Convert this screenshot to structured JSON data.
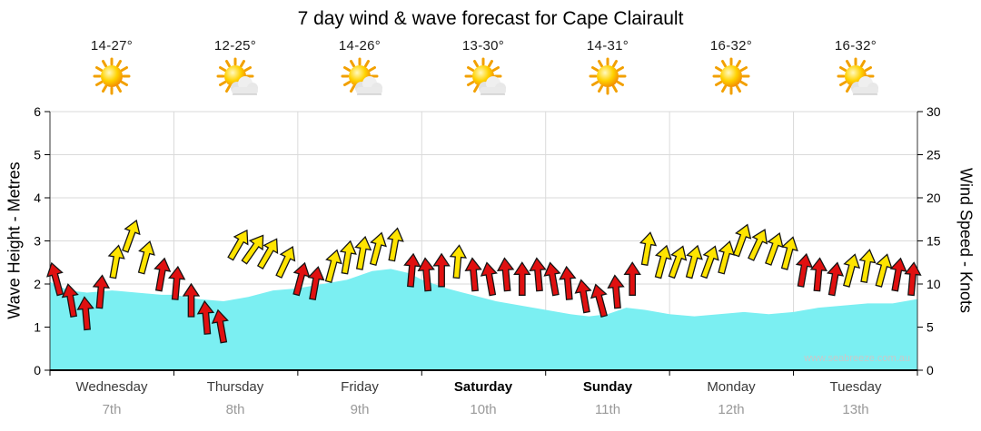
{
  "title": "7 day wind & wave forecast for Cape Clairault",
  "watermark": "www.seabreeze.com.au",
  "left_axis": {
    "label": "Wave Height - Metres",
    "ticks": [
      0,
      1,
      2,
      3,
      4,
      5,
      6
    ]
  },
  "right_axis": {
    "label": "Wind Speed - Knots",
    "ticks": [
      0,
      5,
      10,
      15,
      20,
      25,
      30
    ]
  },
  "days": [
    {
      "name": "Wednesday",
      "date": "7th",
      "temp": "14-27°",
      "icon": "sun",
      "highlight": false
    },
    {
      "name": "Thursday",
      "date": "8th",
      "temp": "12-25°",
      "icon": "sun-cloud",
      "highlight": false
    },
    {
      "name": "Friday",
      "date": "9th",
      "temp": "14-26°",
      "icon": "sun-cloud",
      "highlight": false
    },
    {
      "name": "Saturday",
      "date": "10th",
      "temp": "13-30°",
      "icon": "sun-cloud",
      "highlight": true
    },
    {
      "name": "Sunday",
      "date": "11th",
      "temp": "14-31°",
      "icon": "sun",
      "highlight": true
    },
    {
      "name": "Monday",
      "date": "12th",
      "temp": "16-32°",
      "icon": "sun",
      "highlight": false
    },
    {
      "name": "Tuesday",
      "date": "13th",
      "temp": "16-32°",
      "icon": "sun-cloud",
      "highlight": false
    }
  ],
  "chart_data": {
    "type": "area",
    "title": "7 day wind & wave forecast for Cape Clairault",
    "x_axis": {
      "unit": "days",
      "range": [
        0,
        7
      ],
      "day_labels": [
        "Wednesday 7th",
        "Thursday 8th",
        "Friday 9th",
        "Saturday 10th",
        "Sunday 11th",
        "Monday 12th",
        "Tuesday 13th"
      ]
    },
    "grid": true,
    "wave_height_m": {
      "axis": "left",
      "ylabel": "Wave Height - Metres",
      "ylim": [
        0,
        6
      ],
      "color": "#7BEFF2",
      "t_days": [
        0,
        0.15,
        0.3,
        0.5,
        0.7,
        0.9,
        1.0,
        1.2,
        1.4,
        1.6,
        1.8,
        2.0,
        2.2,
        2.4,
        2.6,
        2.75,
        2.9,
        3.0,
        3.2,
        3.4,
        3.6,
        3.8,
        4.0,
        4.2,
        4.35,
        4.5,
        4.65,
        4.8,
        5.0,
        5.2,
        5.4,
        5.6,
        5.8,
        6.0,
        6.2,
        6.4,
        6.6,
        6.8,
        7.0
      ],
      "values": [
        2.05,
        1.85,
        1.8,
        1.85,
        1.8,
        1.75,
        1.75,
        1.65,
        1.6,
        1.7,
        1.85,
        1.9,
        2.0,
        2.1,
        2.3,
        2.35,
        2.25,
        2.1,
        1.9,
        1.75,
        1.6,
        1.5,
        1.4,
        1.3,
        1.25,
        1.3,
        1.45,
        1.4,
        1.3,
        1.25,
        1.3,
        1.35,
        1.3,
        1.35,
        1.45,
        1.5,
        1.55,
        1.55,
        1.65
      ]
    },
    "wind_speed_knots": {
      "axis": "right",
      "ylabel": "Wind Speed - Knots",
      "ylim": [
        0,
        30
      ],
      "arrow_colors": {
        "red": "#E01010",
        "yellow": "#FFE400"
      },
      "arrows": [
        {
          "t": 0.05,
          "knots": 10.5,
          "color": "red",
          "dir_deg": -15
        },
        {
          "t": 0.17,
          "knots": 8,
          "color": "red",
          "dir_deg": -10
        },
        {
          "t": 0.29,
          "knots": 6.5,
          "color": "red",
          "dir_deg": -5
        },
        {
          "t": 0.41,
          "knots": 9,
          "color": "red",
          "dir_deg": 5
        },
        {
          "t": 0.53,
          "knots": 12.5,
          "color": "yellow",
          "dir_deg": 10
        },
        {
          "t": 0.65,
          "knots": 15.5,
          "color": "yellow",
          "dir_deg": 20
        },
        {
          "t": 0.77,
          "knots": 13,
          "color": "yellow",
          "dir_deg": 15
        },
        {
          "t": 0.9,
          "knots": 11,
          "color": "red",
          "dir_deg": 10
        },
        {
          "t": 1.02,
          "knots": 10,
          "color": "red",
          "dir_deg": 5
        },
        {
          "t": 1.14,
          "knots": 8,
          "color": "red",
          "dir_deg": 0
        },
        {
          "t": 1.26,
          "knots": 6,
          "color": "red",
          "dir_deg": -5
        },
        {
          "t": 1.38,
          "knots": 5,
          "color": "red",
          "dir_deg": -10
        },
        {
          "t": 1.52,
          "knots": 14.5,
          "color": "yellow",
          "dir_deg": 30
        },
        {
          "t": 1.64,
          "knots": 14,
          "color": "yellow",
          "dir_deg": 35
        },
        {
          "t": 1.76,
          "knots": 13.5,
          "color": "yellow",
          "dir_deg": 30
        },
        {
          "t": 1.9,
          "knots": 12.5,
          "color": "yellow",
          "dir_deg": 25
        },
        {
          "t": 2.02,
          "knots": 10.5,
          "color": "red",
          "dir_deg": 15
        },
        {
          "t": 2.14,
          "knots": 10,
          "color": "red",
          "dir_deg": 10
        },
        {
          "t": 2.28,
          "knots": 12,
          "color": "yellow",
          "dir_deg": 15
        },
        {
          "t": 2.4,
          "knots": 13,
          "color": "yellow",
          "dir_deg": 10
        },
        {
          "t": 2.52,
          "knots": 13.5,
          "color": "yellow",
          "dir_deg": 10
        },
        {
          "t": 2.64,
          "knots": 14,
          "color": "yellow",
          "dir_deg": 15
        },
        {
          "t": 2.78,
          "knots": 14.5,
          "color": "yellow",
          "dir_deg": 10
        },
        {
          "t": 2.92,
          "knots": 11.5,
          "color": "red",
          "dir_deg": 5
        },
        {
          "t": 3.04,
          "knots": 11,
          "color": "red",
          "dir_deg": -5
        },
        {
          "t": 3.16,
          "knots": 11.5,
          "color": "red",
          "dir_deg": 0
        },
        {
          "t": 3.29,
          "knots": 12.5,
          "color": "yellow",
          "dir_deg": 5
        },
        {
          "t": 3.42,
          "knots": 11,
          "color": "red",
          "dir_deg": -5
        },
        {
          "t": 3.55,
          "knots": 10.5,
          "color": "red",
          "dir_deg": -10
        },
        {
          "t": 3.68,
          "knots": 11,
          "color": "red",
          "dir_deg": -5
        },
        {
          "t": 3.81,
          "knots": 10.5,
          "color": "red",
          "dir_deg": 0
        },
        {
          "t": 3.94,
          "knots": 11,
          "color": "red",
          "dir_deg": -5
        },
        {
          "t": 4.06,
          "knots": 10.5,
          "color": "red",
          "dir_deg": -10
        },
        {
          "t": 4.18,
          "knots": 10,
          "color": "red",
          "dir_deg": -5
        },
        {
          "t": 4.31,
          "knots": 8.5,
          "color": "red",
          "dir_deg": -10
        },
        {
          "t": 4.44,
          "knots": 8,
          "color": "red",
          "dir_deg": -15
        },
        {
          "t": 4.57,
          "knots": 9,
          "color": "red",
          "dir_deg": -5
        },
        {
          "t": 4.7,
          "knots": 10.5,
          "color": "red",
          "dir_deg": 0
        },
        {
          "t": 4.82,
          "knots": 14,
          "color": "yellow",
          "dir_deg": 10
        },
        {
          "t": 4.94,
          "knots": 12.5,
          "color": "yellow",
          "dir_deg": 15
        },
        {
          "t": 5.06,
          "knots": 12.5,
          "color": "yellow",
          "dir_deg": 20
        },
        {
          "t": 5.19,
          "knots": 12.5,
          "color": "yellow",
          "dir_deg": 15
        },
        {
          "t": 5.32,
          "knots": 12.5,
          "color": "yellow",
          "dir_deg": 20
        },
        {
          "t": 5.45,
          "knots": 13,
          "color": "yellow",
          "dir_deg": 15
        },
        {
          "t": 5.58,
          "knots": 15,
          "color": "yellow",
          "dir_deg": 20
        },
        {
          "t": 5.71,
          "knots": 14.5,
          "color": "yellow",
          "dir_deg": 25
        },
        {
          "t": 5.84,
          "knots": 14,
          "color": "yellow",
          "dir_deg": 20
        },
        {
          "t": 5.96,
          "knots": 13.5,
          "color": "yellow",
          "dir_deg": 15
        },
        {
          "t": 6.08,
          "knots": 11.5,
          "color": "red",
          "dir_deg": 10
        },
        {
          "t": 6.2,
          "knots": 11,
          "color": "red",
          "dir_deg": 5
        },
        {
          "t": 6.33,
          "knots": 10.5,
          "color": "red",
          "dir_deg": 10
        },
        {
          "t": 6.46,
          "knots": 11.5,
          "color": "yellow",
          "dir_deg": 15
        },
        {
          "t": 6.59,
          "knots": 12,
          "color": "yellow",
          "dir_deg": 10
        },
        {
          "t": 6.72,
          "knots": 11.5,
          "color": "yellow",
          "dir_deg": 15
        },
        {
          "t": 6.84,
          "knots": 11,
          "color": "red",
          "dir_deg": 10
        },
        {
          "t": 6.96,
          "knots": 10.5,
          "color": "red",
          "dir_deg": 5
        }
      ]
    }
  }
}
